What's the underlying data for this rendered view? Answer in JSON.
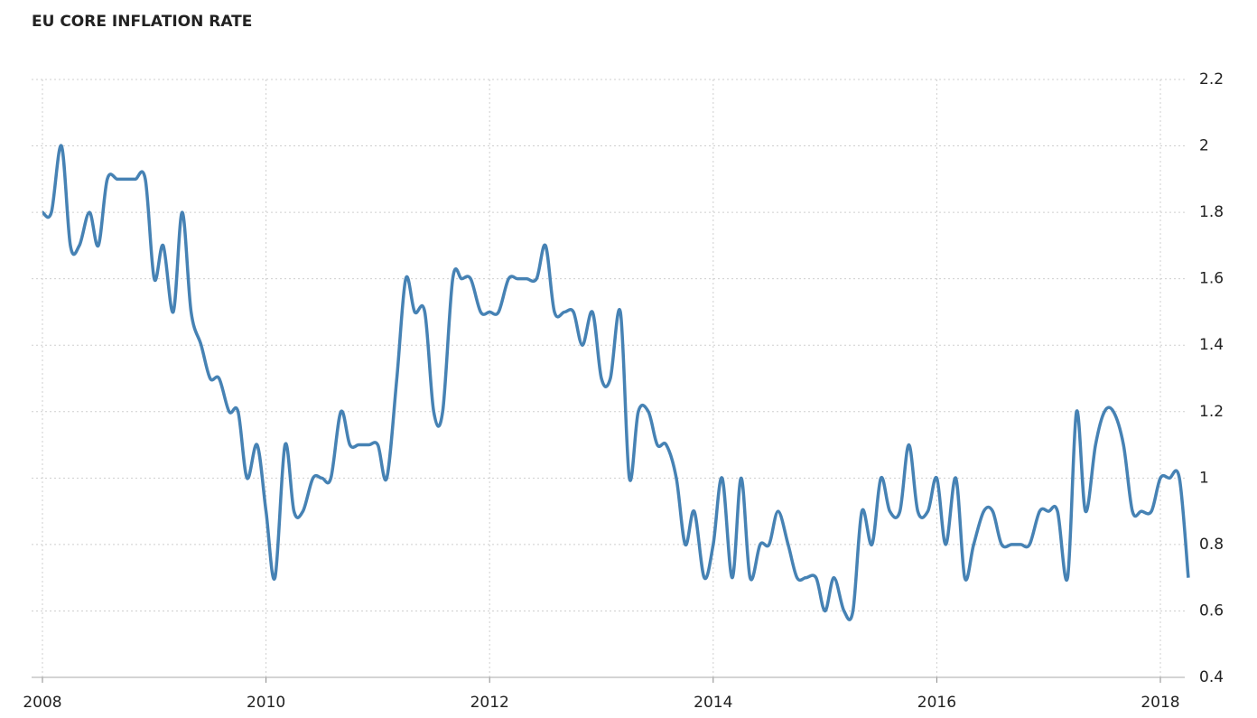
{
  "chart_data": {
    "type": "line",
    "title": "EU CORE INFLATION RATE",
    "x": [
      2008,
      2008.08,
      2008.17,
      2008.25,
      2008.33,
      2008.42,
      2008.5,
      2008.58,
      2008.67,
      2008.75,
      2008.83,
      2008.92,
      2009,
      2009.08,
      2009.17,
      2009.25,
      2009.33,
      2009.42,
      2009.5,
      2009.58,
      2009.67,
      2009.75,
      2009.83,
      2009.92,
      2010,
      2010.08,
      2010.17,
      2010.25,
      2010.33,
      2010.42,
      2010.5,
      2010.58,
      2010.67,
      2010.75,
      2010.83,
      2010.92,
      2011,
      2011.08,
      2011.17,
      2011.25,
      2011.33,
      2011.42,
      2011.5,
      2011.58,
      2011.67,
      2011.75,
      2011.83,
      2011.92,
      2012,
      2012.08,
      2012.17,
      2012.25,
      2012.33,
      2012.42,
      2012.5,
      2012.58,
      2012.67,
      2012.75,
      2012.83,
      2012.92,
      2013,
      2013.08,
      2013.17,
      2013.25,
      2013.33,
      2013.42,
      2013.5,
      2013.58,
      2013.67,
      2013.75,
      2013.83,
      2013.92,
      2014,
      2014.08,
      2014.17,
      2014.25,
      2014.33,
      2014.42,
      2014.5,
      2014.58,
      2014.67,
      2014.75,
      2014.83,
      2014.92,
      2015,
      2015.08,
      2015.17,
      2015.25,
      2015.33,
      2015.42,
      2015.5,
      2015.58,
      2015.67,
      2015.75,
      2015.83,
      2015.92,
      2016,
      2016.08,
      2016.17,
      2016.25,
      2016.33,
      2016.42,
      2016.5,
      2016.58,
      2016.67,
      2016.75,
      2016.83,
      2016.92,
      2017,
      2017.08,
      2017.17,
      2017.25,
      2017.33,
      2017.42,
      2017.5,
      2017.58,
      2017.67,
      2017.75,
      2017.83,
      2017.92,
      2018,
      2018.08,
      2018.17,
      2018.25
    ],
    "series": [
      {
        "color": "#4682b4",
        "values": [
          1.8,
          1.8,
          2.0,
          1.7,
          1.7,
          1.8,
          1.7,
          1.9,
          1.9,
          1.9,
          1.9,
          1.9,
          1.6,
          1.7,
          1.5,
          1.8,
          1.5,
          1.4,
          1.3,
          1.3,
          1.2,
          1.2,
          1.0,
          1.1,
          0.9,
          0.7,
          1.1,
          0.9,
          0.9,
          1.0,
          1.0,
          1.0,
          1.2,
          1.1,
          1.1,
          1.1,
          1.1,
          1.0,
          1.3,
          1.6,
          1.5,
          1.5,
          1.2,
          1.2,
          1.6,
          1.6,
          1.6,
          1.5,
          1.5,
          1.5,
          1.6,
          1.6,
          1.6,
          1.6,
          1.7,
          1.5,
          1.5,
          1.5,
          1.4,
          1.5,
          1.3,
          1.3,
          1.5,
          1.0,
          1.2,
          1.2,
          1.1,
          1.1,
          1.0,
          0.8,
          0.9,
          0.7,
          0.8,
          1.0,
          0.7,
          1.0,
          0.7,
          0.8,
          0.8,
          0.9,
          0.8,
          0.7,
          0.7,
          0.7,
          0.6,
          0.7,
          0.6,
          0.6,
          0.9,
          0.8,
          1.0,
          0.9,
          0.9,
          1.1,
          0.9,
          0.9,
          1.0,
          0.8,
          1.0,
          0.7,
          0.8,
          0.9,
          0.9,
          0.8,
          0.8,
          0.8,
          0.8,
          0.9,
          0.9,
          0.9,
          0.7,
          1.2,
          0.9,
          1.1,
          1.2,
          1.2,
          1.1,
          0.9,
          0.9,
          0.9,
          1.0,
          1.0,
          1.0,
          0.7
        ]
      }
    ],
    "xlim": [
      2008,
      2018.25
    ],
    "xticks": [
      2008,
      2010,
      2012,
      2014,
      2016,
      2018
    ],
    "ylim": [
      0.4,
      2.2
    ],
    "yticks": [
      0.4,
      0.6,
      0.8,
      1,
      1.2,
      1.4,
      1.6,
      1.8,
      2,
      2.2
    ],
    "grid": true
  }
}
